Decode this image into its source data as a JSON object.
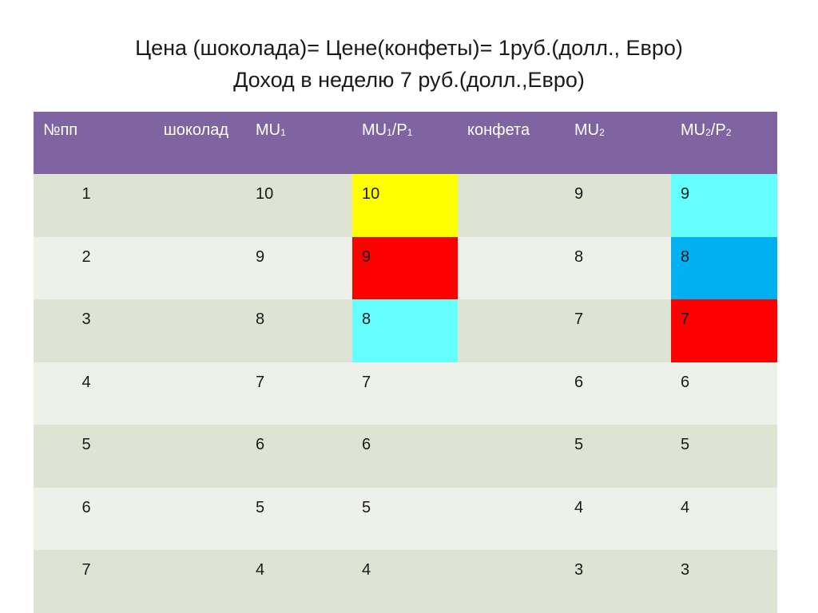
{
  "title": {
    "line1": "Цена (шоколада)= Цене(конфеты)= 1руб.(долл., Евро)",
    "line2": "Доход в неделю 7 руб.(долл.,Евро)"
  },
  "table": {
    "headers": [
      {
        "text": "№пп"
      },
      {
        "text": "шоколад"
      },
      {
        "text": "MU",
        "sub1": "1"
      },
      {
        "text": "MU",
        "sub1": "1",
        "mid": "/P",
        "sub2": "1"
      },
      {
        "text": "конфета"
      },
      {
        "text": "MU",
        "sub1": "2"
      },
      {
        "text": "MU",
        "sub1": "2",
        "mid": "/P",
        "sub2": "2"
      }
    ],
    "rows": [
      [
        "1",
        "",
        "10",
        "10",
        "",
        "9",
        "9"
      ],
      [
        "2",
        "",
        "9",
        "9",
        "",
        "8",
        "8"
      ],
      [
        "3",
        "",
        "8",
        "8",
        "",
        "7",
        "7"
      ],
      [
        "4",
        "",
        "7",
        "7",
        "",
        "6",
        "6"
      ],
      [
        "5",
        "",
        "6",
        "6",
        "",
        "5",
        "5"
      ],
      [
        "6",
        "",
        "5",
        "5",
        "",
        "4",
        "4"
      ],
      [
        "7",
        "",
        "4",
        "4",
        "",
        "3",
        "3"
      ]
    ],
    "highlights": [
      {
        "row": 0,
        "col": 3,
        "color": "#ffff00"
      },
      {
        "row": 0,
        "col": 6,
        "color": "#66ffff"
      },
      {
        "row": 1,
        "col": 3,
        "color": "#ff0000"
      },
      {
        "row": 1,
        "col": 6,
        "color": "#00b0f0"
      },
      {
        "row": 2,
        "col": 3,
        "color": "#66ffff"
      },
      {
        "row": 2,
        "col": 6,
        "color": "#ff0000"
      }
    ],
    "colors": {
      "header_bg": "#8064a2",
      "row_odd_bg": "#dde4d3",
      "row_even_bg": "#eef1ea"
    }
  }
}
